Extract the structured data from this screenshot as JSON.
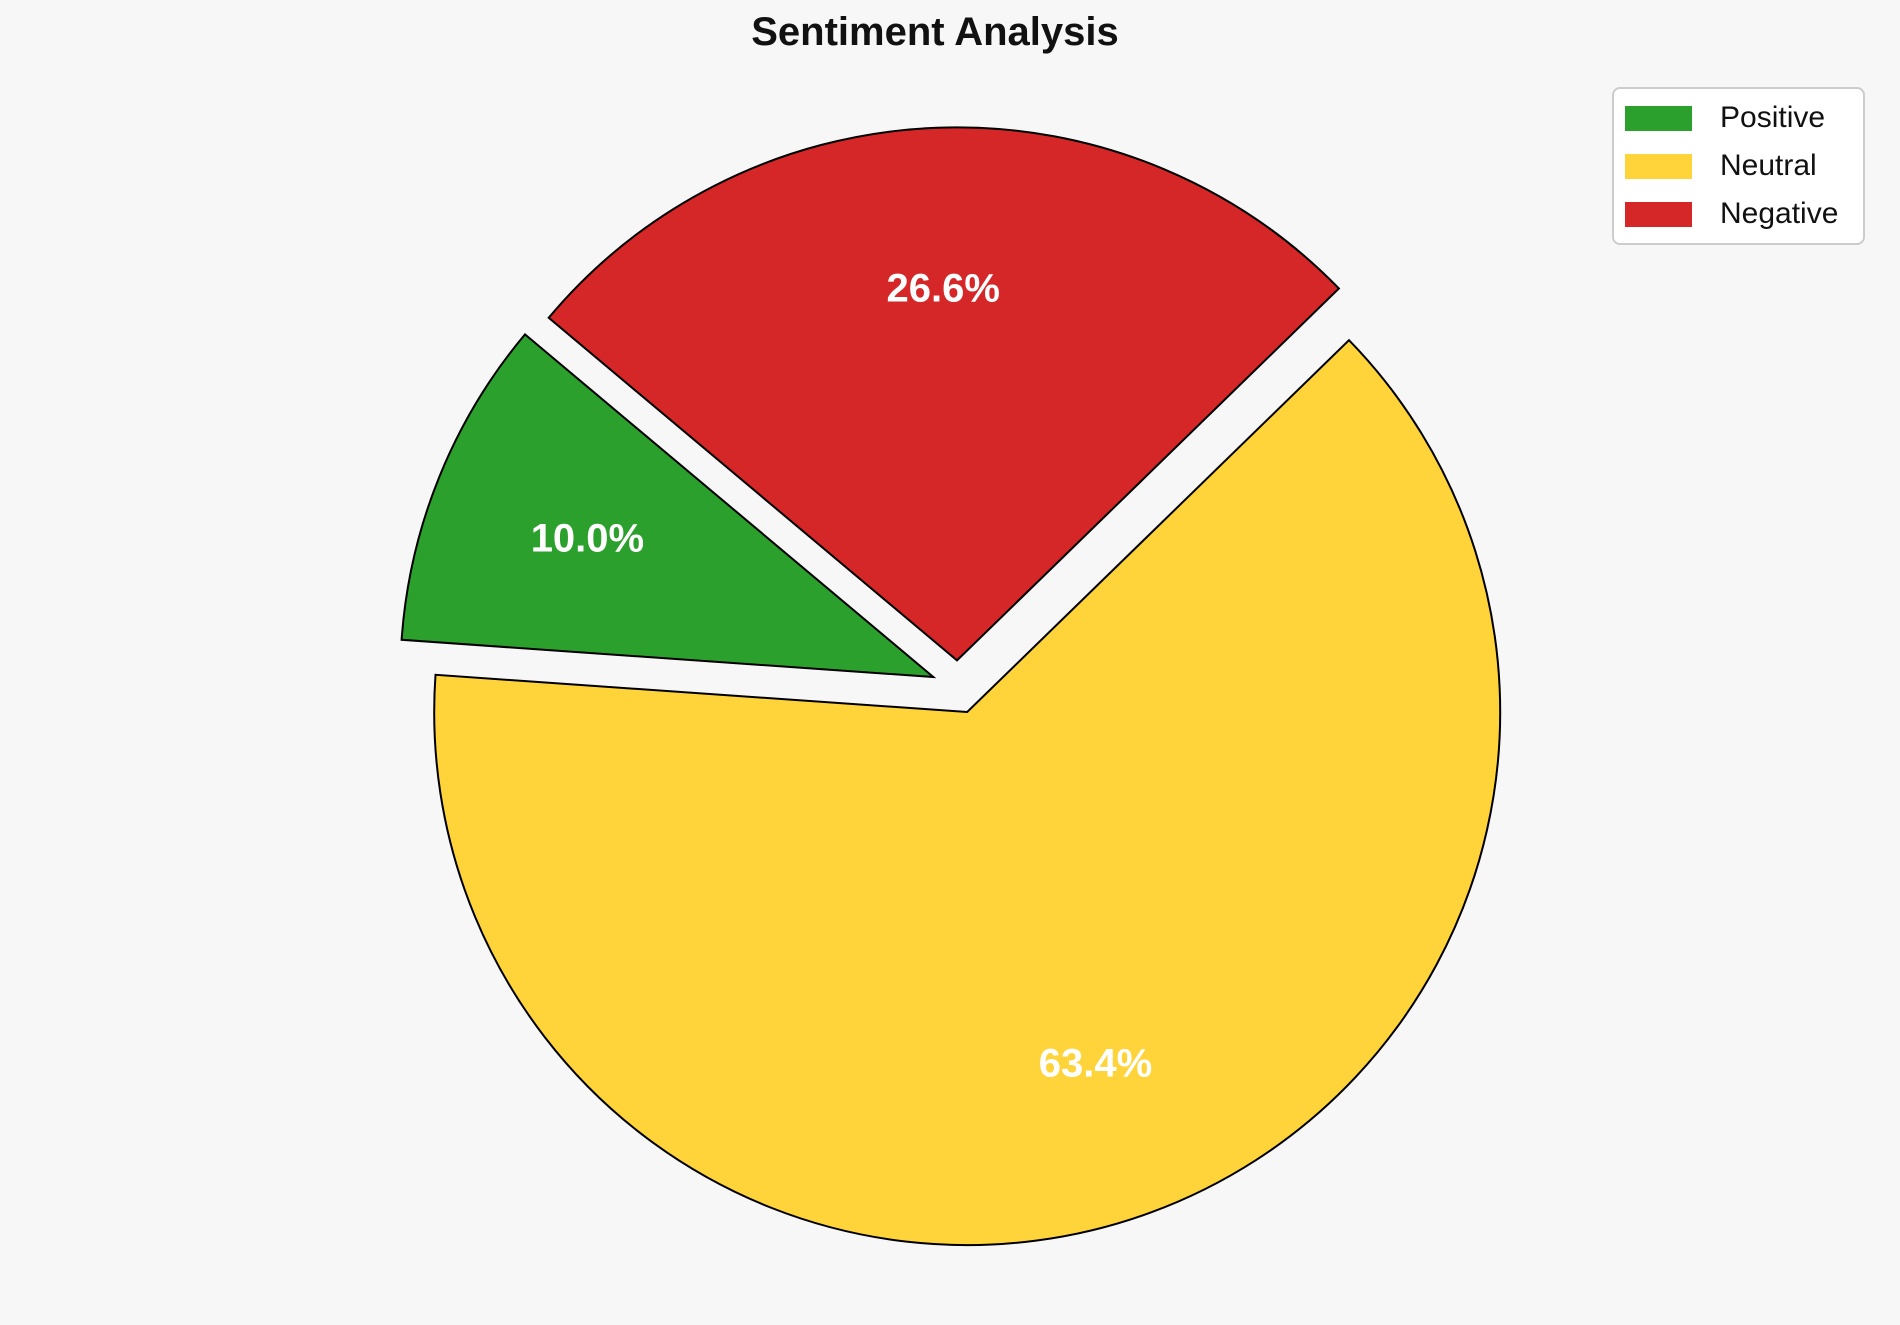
{
  "page": {
    "background": "#f7f7f7"
  },
  "chart_data": {
    "type": "pie",
    "title": "Sentiment Analysis",
    "slices": [
      {
        "label": "Positive",
        "value": 10.0,
        "pct_label": "10.0%",
        "color": "#2ca02c"
      },
      {
        "label": "Neutral",
        "value": 63.4,
        "pct_label": "63.4%",
        "color": "#ffd43b"
      },
      {
        "label": "Negative",
        "value": 26.6,
        "pct_label": "26.6%",
        "color": "#d62728"
      }
    ],
    "start_angle_deg": 140,
    "direction": "counterclockwise",
    "explode": 0.05,
    "pct_distance": 0.7,
    "pct_label_color": "#ffffff",
    "edge_color": "#000000",
    "legend_position": "upper-right"
  }
}
